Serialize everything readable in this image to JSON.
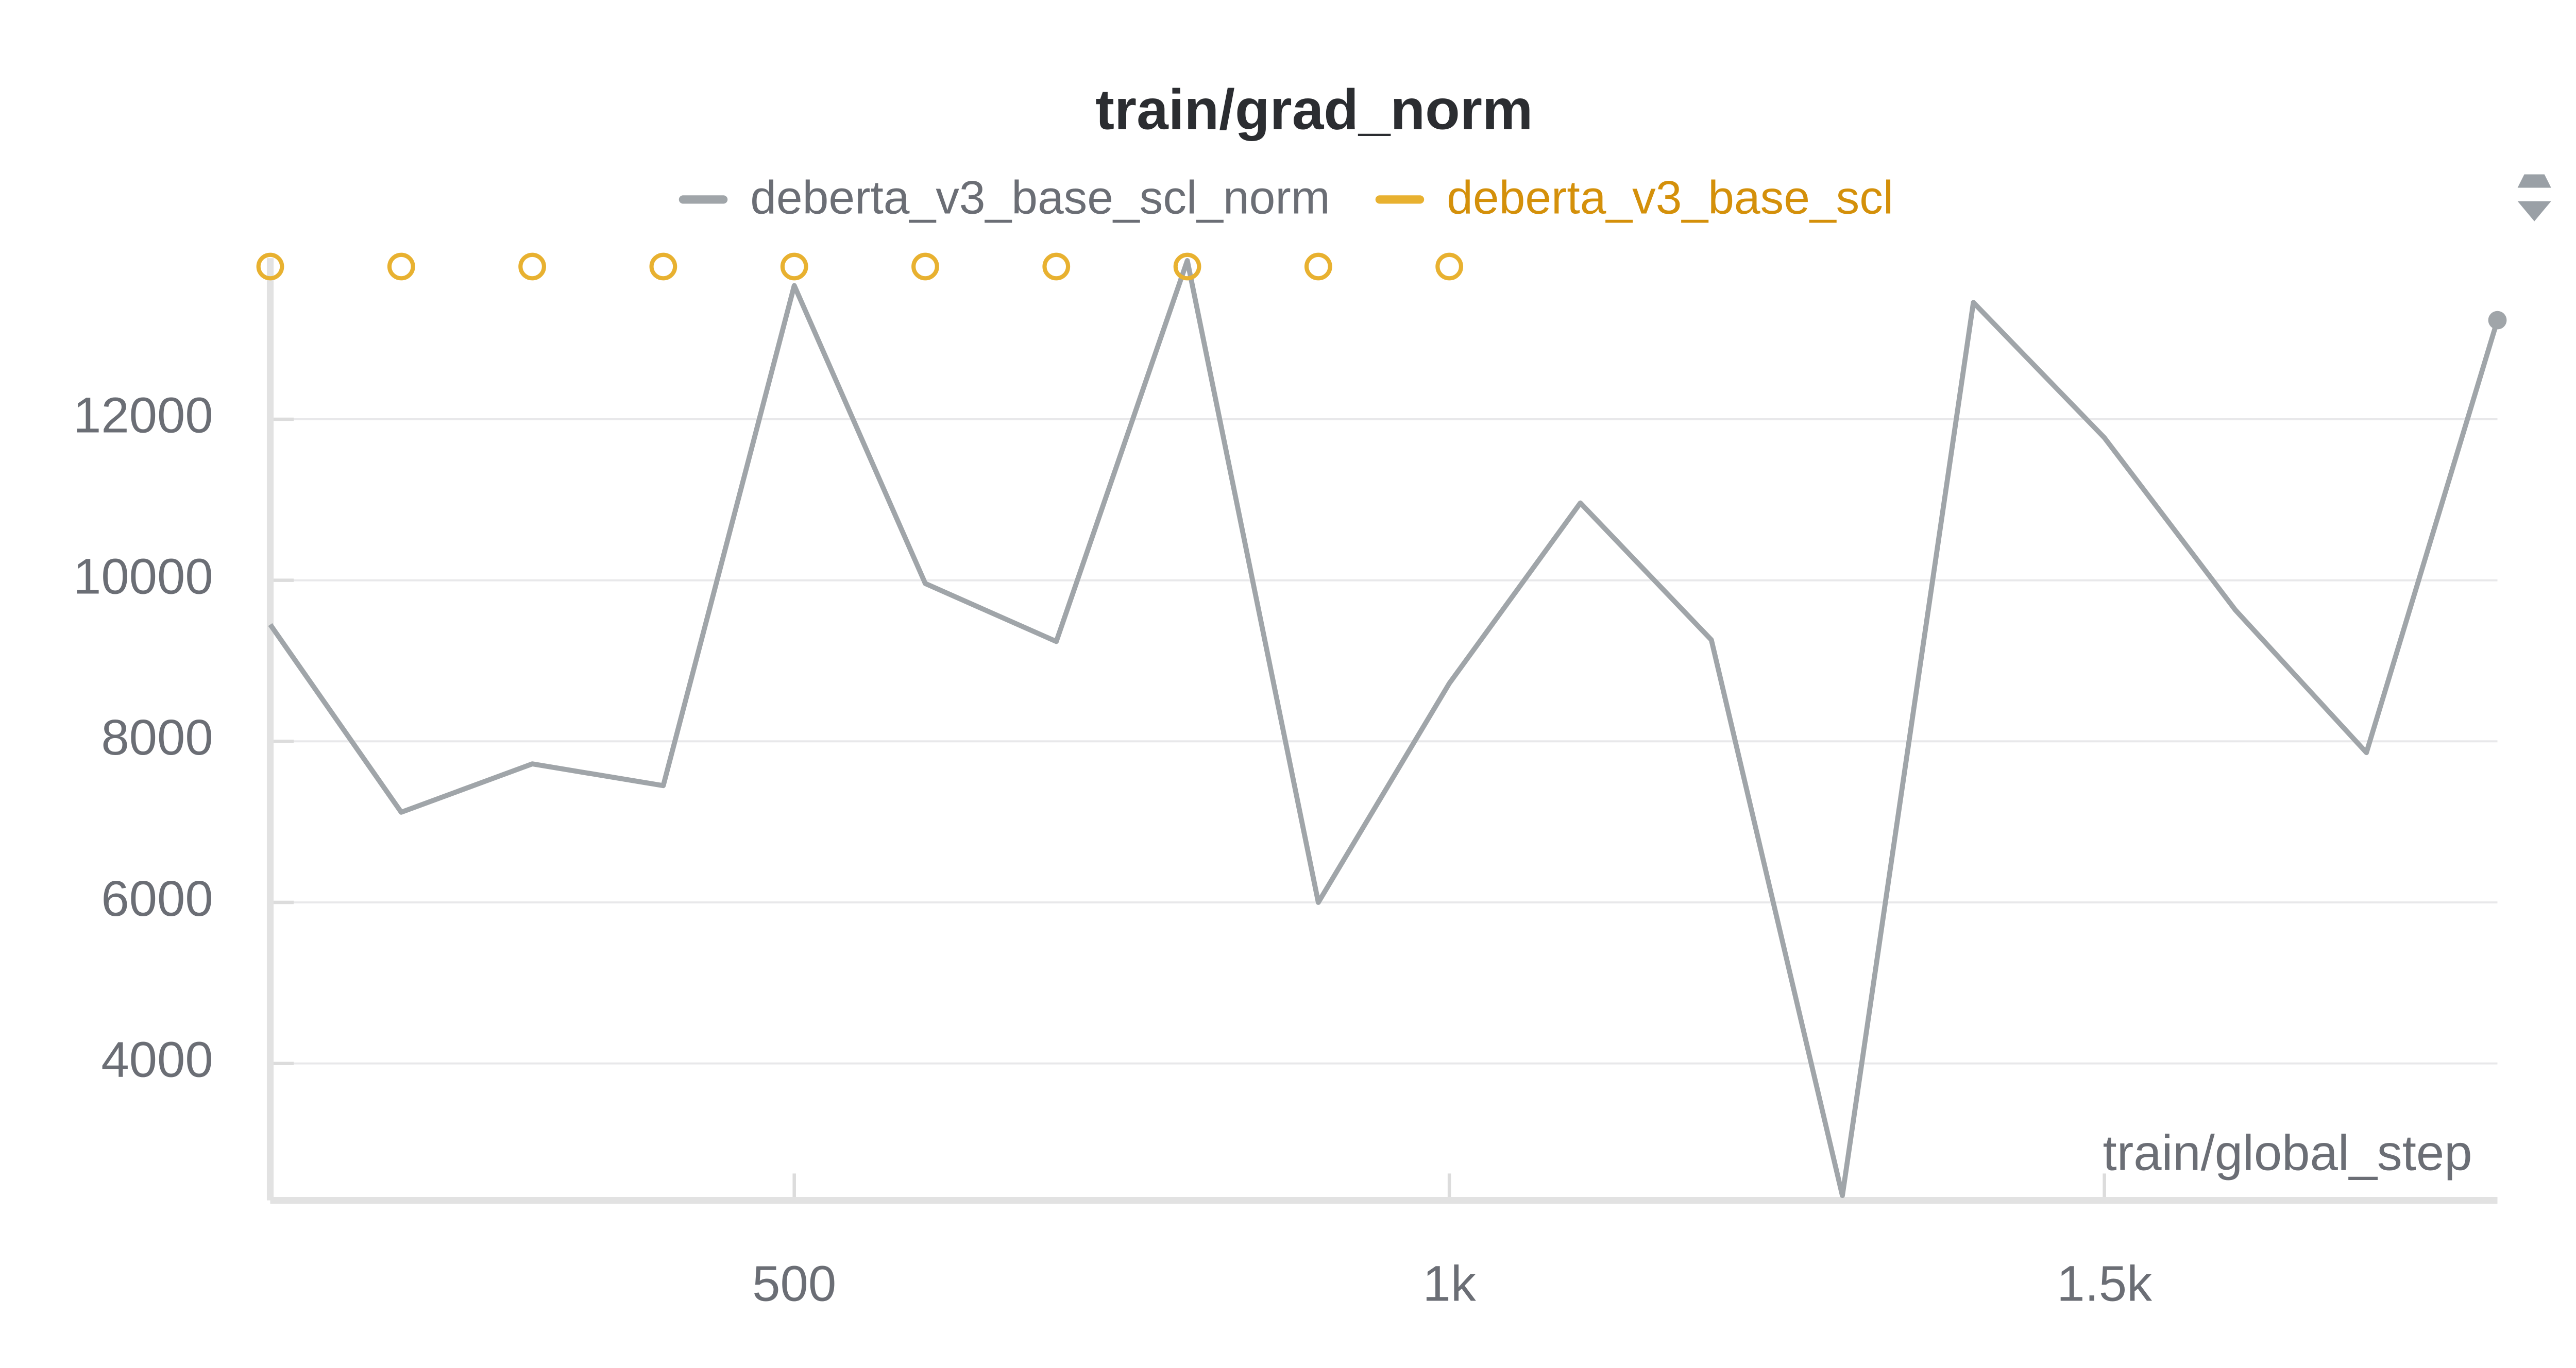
{
  "chart_data": {
    "type": "line",
    "title": "train/grad_norm",
    "x_label": "train/global_step",
    "xlim": [
      100,
      1800
    ],
    "xticks": [
      500,
      {
        "value": 1000,
        "label": "1k"
      },
      {
        "value": 1500,
        "label": "1.5k"
      }
    ],
    "ylim": [
      2300,
      14000
    ],
    "yticks": [
      4000,
      6000,
      8000,
      10000,
      12000
    ],
    "grid": true,
    "series": [
      {
        "name": "deberta_v3_base_scl_norm",
        "color": "#a0a5a9",
        "x": [
          100,
          200,
          300,
          400,
          500,
          600,
          700,
          800,
          900,
          1000,
          1100,
          1200,
          1300,
          1400,
          1500,
          1600,
          1700,
          1800
        ],
        "values": [
          9450,
          7120,
          7720,
          7450,
          13660,
          9960,
          9240,
          13970,
          6000,
          8720,
          10960,
          9260,
          2360,
          13450,
          11770,
          9630,
          7860,
          13230
        ]
      },
      {
        "name": "deberta_v3_base_scl",
        "color": "#e8b130",
        "x": [
          100,
          200,
          300,
          400,
          500,
          600,
          700,
          800,
          900,
          1000
        ],
        "values": [
          null,
          null,
          null,
          null,
          null,
          null,
          null,
          null,
          null,
          null
        ]
      }
    ]
  }
}
